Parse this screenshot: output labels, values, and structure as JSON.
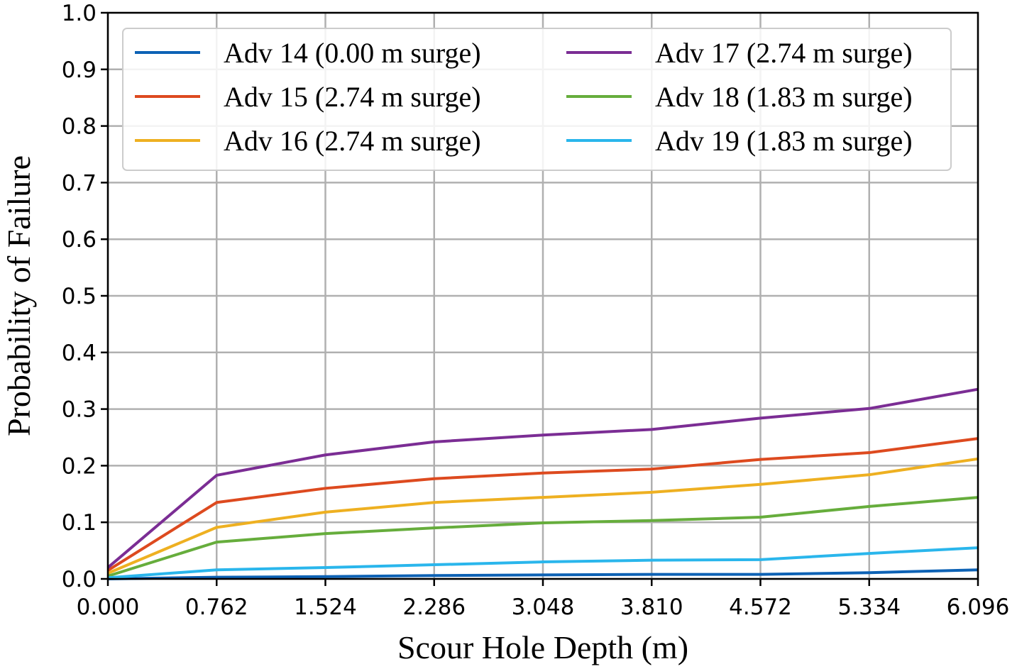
{
  "chart_data": {
    "type": "line",
    "title": "",
    "xlabel": "Scour Hole Depth (m)",
    "ylabel": "Probability of Failure",
    "xlim": [
      0,
      6.096
    ],
    "ylim": [
      0,
      1.0
    ],
    "grid": true,
    "legend_position": "top",
    "x": [
      0.0,
      0.762,
      1.524,
      2.286,
      3.048,
      3.81,
      4.572,
      5.334,
      6.096
    ],
    "x_tick_labels": [
      "0.000",
      "0.762",
      "1.524",
      "2.286",
      "3.048",
      "3.810",
      "4.572",
      "5.334",
      "6.096"
    ],
    "y_ticks": [
      0.0,
      0.1,
      0.2,
      0.3,
      0.4,
      0.5,
      0.6,
      0.7,
      0.8,
      0.9,
      1.0
    ],
    "y_tick_labels": [
      "0.0",
      "0.1",
      "0.2",
      "0.3",
      "0.4",
      "0.5",
      "0.6",
      "0.7",
      "0.8",
      "0.9",
      "1.0"
    ],
    "series": [
      {
        "name": "Adv 14 (0.00 m surge)",
        "color": "#0d62b5",
        "values": [
          0.0,
          0.003,
          0.004,
          0.006,
          0.007,
          0.008,
          0.008,
          0.011,
          0.016
        ]
      },
      {
        "name": "Adv 15 (2.74 m surge)",
        "color": "#dd4a1f",
        "values": [
          0.015,
          0.135,
          0.16,
          0.177,
          0.187,
          0.194,
          0.211,
          0.223,
          0.248
        ]
      },
      {
        "name": "Adv 16 (2.74 m surge)",
        "color": "#eeb021",
        "values": [
          0.01,
          0.091,
          0.118,
          0.135,
          0.144,
          0.153,
          0.167,
          0.184,
          0.212
        ]
      },
      {
        "name": "Adv 17 (2.74 m surge)",
        "color": "#7b2d94",
        "values": [
          0.02,
          0.183,
          0.219,
          0.242,
          0.254,
          0.264,
          0.284,
          0.301,
          0.335
        ]
      },
      {
        "name": "Adv 18 (1.83 m surge)",
        "color": "#66ad3c",
        "values": [
          0.005,
          0.065,
          0.08,
          0.09,
          0.099,
          0.103,
          0.109,
          0.128,
          0.144
        ]
      },
      {
        "name": "Adv 19 (1.83 m surge)",
        "color": "#2ab6ec",
        "values": [
          0.002,
          0.016,
          0.02,
          0.025,
          0.03,
          0.033,
          0.034,
          0.045,
          0.055
        ]
      }
    ]
  }
}
